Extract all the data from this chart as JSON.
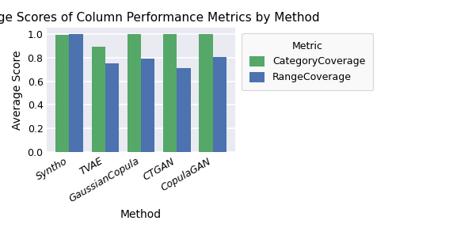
{
  "title": "Average Scores of Column Performance Metrics by Method",
  "xlabel": "Method",
  "ylabel": "Average Score",
  "methods": [
    "Syntho",
    "TVAE",
    "GaussianCopula",
    "CTGAN",
    "CopulaGAN"
  ],
  "category_coverage": [
    0.99,
    0.89,
    1.0,
    1.0,
    1.0
  ],
  "range_coverage": [
    1.0,
    0.75,
    0.79,
    0.71,
    0.805
  ],
  "color_category": "#55a868",
  "color_range": "#4c72b0",
  "plot_bg_color": "#eaeaf2",
  "fig_bg_color": "#ffffff",
  "ylim": [
    0.0,
    1.05
  ],
  "legend_title": "Metric",
  "legend_labels": [
    "CategoryCoverage",
    "RangeCoverage"
  ],
  "bar_width": 0.38,
  "title_fontsize": 11,
  "label_fontsize": 10,
  "tick_fontsize": 9,
  "legend_fontsize": 9
}
